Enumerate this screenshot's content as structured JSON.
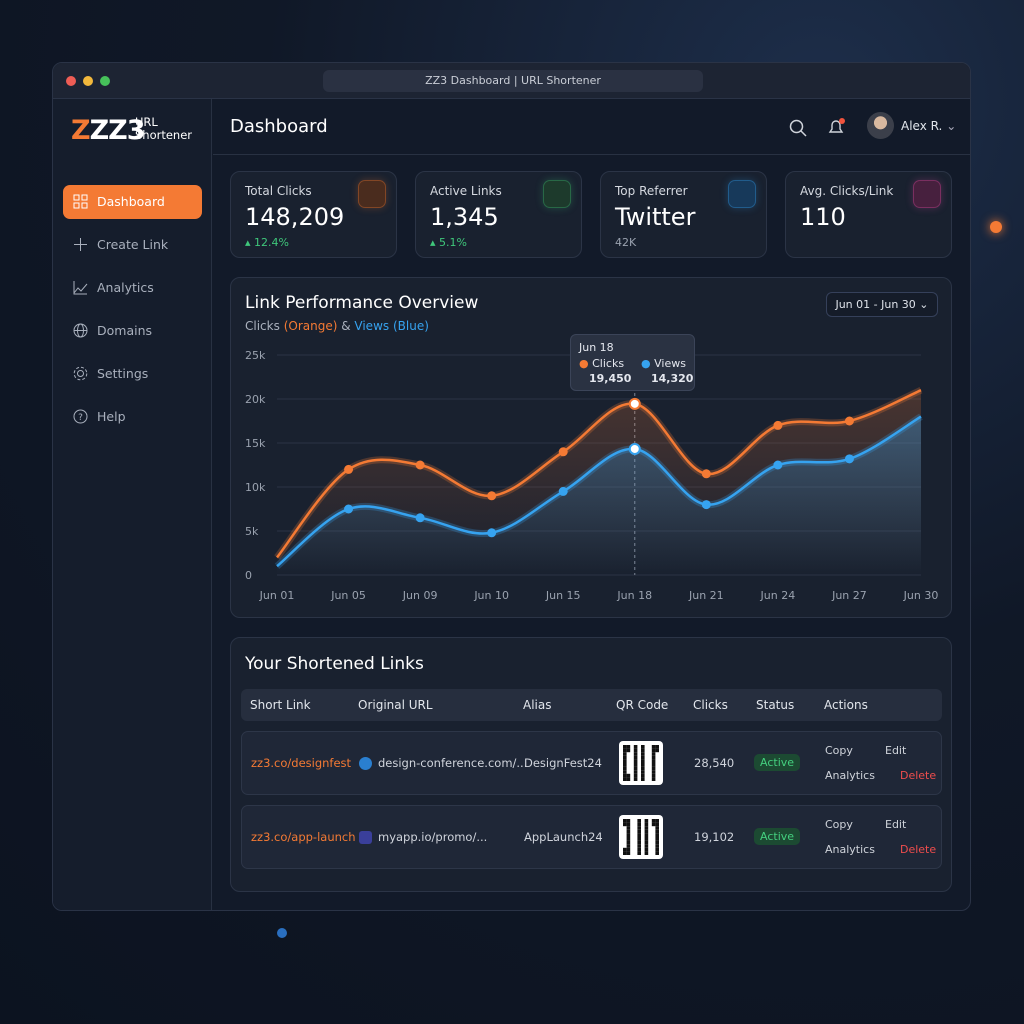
{
  "browser": {
    "tab_title": "ZZ3 Dashboard | URL Shortener"
  },
  "sidebar": {
    "logo": "ZZ3",
    "logo_sub": [
      "URL",
      "Shortener"
    ],
    "nav": [
      "Dashboard",
      "Create Link",
      "Analytics",
      "Domains",
      "Settings",
      "Help"
    ]
  },
  "header": {
    "title": "Dashboard",
    "user": "Alex R."
  },
  "stats": [
    {
      "label": "Total Clicks",
      "value": "148,209",
      "change": "12.4%"
    },
    {
      "label": "Active Links",
      "value": "1,345",
      "change": "5.1%"
    },
    {
      "label": "Top Referrer",
      "value": "Twitter",
      "sub": "42K"
    },
    {
      "label": "Avg. Clicks/Link",
      "value": "110"
    }
  ],
  "chart_data": {
    "type": "line",
    "title": "Link Performance Overview",
    "subtitle_parts": [
      "Clicks",
      "(Orange)",
      "&",
      "Views",
      "(Blue)"
    ],
    "date_range": "Jun 01 - Jun 30",
    "categories": [
      "Jun 01",
      "Jun 05",
      "Jun 09",
      "Jun 10",
      "Jun 15",
      "Jun 18",
      "Jun 21",
      "Jun 24",
      "Jun 27",
      "Jun 30"
    ],
    "series": [
      {
        "name": "Clicks",
        "color": "#f47a34",
        "values": [
          2000,
          12000,
          12500,
          9000,
          14000,
          19450,
          11500,
          17000,
          17500,
          21000
        ],
        "value_labels": [
          null,
          null,
          null,
          null,
          null,
          "19,450",
          null,
          null,
          null,
          null
        ]
      },
      {
        "name": "Views",
        "color": "#36a3f0",
        "values": [
          1000,
          7500,
          6500,
          4800,
          9500,
          14320,
          8000,
          12500,
          13200,
          18000
        ],
        "value_labels": [
          null,
          null,
          null,
          null,
          null,
          "14,320",
          null,
          null,
          null,
          null
        ]
      }
    ],
    "ylim": [
      0,
      25000
    ],
    "yticks": [
      0,
      {
        "value": 5000,
        "label": "5k"
      },
      {
        "value": 10000,
        "label": "10k"
      },
      {
        "value": 15000,
        "label": "15k"
      },
      {
        "value": 20000,
        "label": "20k"
      },
      {
        "value": 25000,
        "label": "25k"
      }
    ],
    "grid": true
  },
  "links": {
    "title": "Your Shortened Links",
    "columns": [
      "Short Link",
      "Original URL",
      "Alias",
      "QR Code",
      "Clicks",
      "Status",
      "Actions"
    ],
    "rows": [
      {
        "short": "zz3.co/designfest",
        "url": "design-conference.com/...",
        "alias": "DesignFest24",
        "clicks": "28,540",
        "status": "Active"
      },
      {
        "short": "zz3.co/app-launch",
        "url": "myapp.io/promo/...",
        "alias": "AppLaunch24",
        "clicks": "19,102",
        "status": "Active"
      }
    ],
    "actions": {
      "copy": "Copy",
      "edit": "Edit",
      "analytics": "Analytics",
      "delete": "Delete"
    }
  }
}
